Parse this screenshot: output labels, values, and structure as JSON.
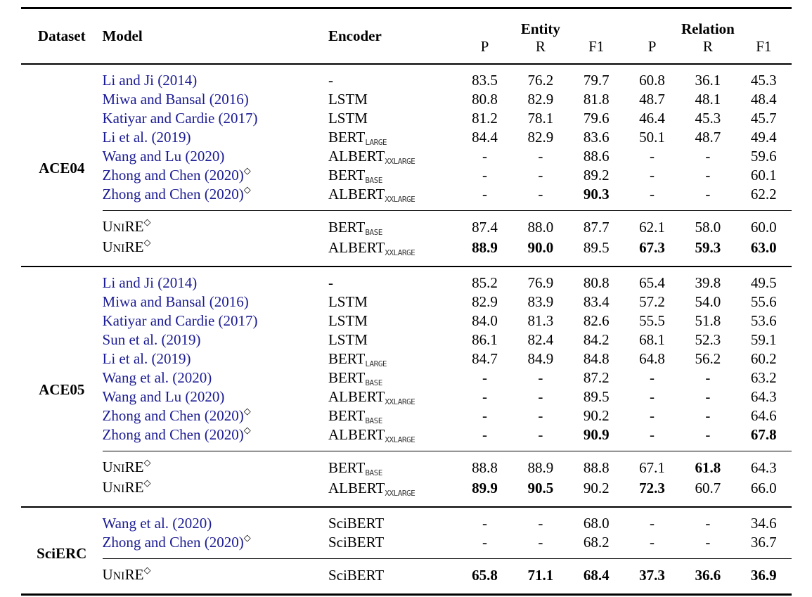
{
  "symbols": {
    "diamond": "◇"
  },
  "colors": {
    "citation": "#1b1b94",
    "text": "#000000",
    "rule": "#000000"
  },
  "header": {
    "dataset": "Dataset",
    "model": "Model",
    "encoder": "Encoder",
    "entity": "Entity",
    "relation": "Relation",
    "sub": [
      "P",
      "R",
      "F1",
      "P",
      "R",
      "F1"
    ]
  },
  "sections": [
    {
      "dataset": "ACE04",
      "rows": [
        {
          "group": "baseline",
          "model": "Li and Ji (2014)",
          "cite": true,
          "diamond": false,
          "enc": "-",
          "enc_sub": "",
          "values": [
            "83.5",
            "76.2",
            "79.7",
            "60.8",
            "36.1",
            "45.3"
          ],
          "bold": [
            false,
            false,
            false,
            false,
            false,
            false
          ]
        },
        {
          "group": "baseline",
          "model": "Miwa and Bansal (2016)",
          "cite": true,
          "diamond": false,
          "enc": "LSTM",
          "enc_sub": "",
          "values": [
            "80.8",
            "82.9",
            "81.8",
            "48.7",
            "48.1",
            "48.4"
          ],
          "bold": [
            false,
            false,
            false,
            false,
            false,
            false
          ]
        },
        {
          "group": "baseline",
          "model": "Katiyar and Cardie (2017)",
          "cite": true,
          "diamond": false,
          "enc": "LSTM",
          "enc_sub": "",
          "values": [
            "81.2",
            "78.1",
            "79.6",
            "46.4",
            "45.3",
            "45.7"
          ],
          "bold": [
            false,
            false,
            false,
            false,
            false,
            false
          ]
        },
        {
          "group": "baseline",
          "model": "Li et al. (2019)",
          "cite": true,
          "diamond": false,
          "enc": "BERT",
          "enc_sub": "LARGE",
          "values": [
            "84.4",
            "82.9",
            "83.6",
            "50.1",
            "48.7",
            "49.4"
          ],
          "bold": [
            false,
            false,
            false,
            false,
            false,
            false
          ]
        },
        {
          "group": "baseline",
          "model": "Wang and Lu (2020)",
          "cite": true,
          "diamond": false,
          "enc": "ALBERT",
          "enc_sub": "XXLARGE",
          "values": [
            "-",
            "-",
            "88.6",
            "-",
            "-",
            "59.6"
          ],
          "bold": [
            false,
            false,
            false,
            false,
            false,
            false
          ]
        },
        {
          "group": "baseline",
          "model": "Zhong and Chen (2020)",
          "cite": true,
          "diamond": true,
          "enc": "BERT",
          "enc_sub": "BASE",
          "values": [
            "-",
            "-",
            "89.2",
            "-",
            "-",
            "60.1"
          ],
          "bold": [
            false,
            false,
            false,
            false,
            false,
            false
          ]
        },
        {
          "group": "baseline",
          "model": "Zhong and Chen (2020)",
          "cite": true,
          "diamond": true,
          "enc": "ALBERT",
          "enc_sub": "XXLARGE",
          "values": [
            "-",
            "-",
            "90.3",
            "-",
            "-",
            "62.2"
          ],
          "bold": [
            false,
            false,
            true,
            false,
            false,
            false
          ]
        },
        {
          "group": "unire",
          "model_sc": [
            "U",
            "NI",
            "RE"
          ],
          "cite": false,
          "diamond": true,
          "enc": "BERT",
          "enc_sub": "BASE",
          "values": [
            "87.4",
            "88.0",
            "87.7",
            "62.1",
            "58.0",
            "60.0"
          ],
          "bold": [
            false,
            false,
            false,
            false,
            false,
            false
          ]
        },
        {
          "group": "unire",
          "model_sc": [
            "U",
            "NI",
            "RE"
          ],
          "cite": false,
          "diamond": true,
          "enc": "ALBERT",
          "enc_sub": "XXLARGE",
          "values": [
            "88.9",
            "90.0",
            "89.5",
            "67.3",
            "59.3",
            "63.0"
          ],
          "bold": [
            true,
            true,
            false,
            true,
            true,
            true
          ]
        }
      ]
    },
    {
      "dataset": "ACE05",
      "rows": [
        {
          "group": "baseline",
          "model": "Li and Ji (2014)",
          "cite": true,
          "diamond": false,
          "enc": "-",
          "enc_sub": "",
          "values": [
            "85.2",
            "76.9",
            "80.8",
            "65.4",
            "39.8",
            "49.5"
          ],
          "bold": [
            false,
            false,
            false,
            false,
            false,
            false
          ]
        },
        {
          "group": "baseline",
          "model": "Miwa and Bansal (2016)",
          "cite": true,
          "diamond": false,
          "enc": "LSTM",
          "enc_sub": "",
          "values": [
            "82.9",
            "83.9",
            "83.4",
            "57.2",
            "54.0",
            "55.6"
          ],
          "bold": [
            false,
            false,
            false,
            false,
            false,
            false
          ]
        },
        {
          "group": "baseline",
          "model": "Katiyar and Cardie (2017)",
          "cite": true,
          "diamond": false,
          "enc": "LSTM",
          "enc_sub": "",
          "values": [
            "84.0",
            "81.3",
            "82.6",
            "55.5",
            "51.8",
            "53.6"
          ],
          "bold": [
            false,
            false,
            false,
            false,
            false,
            false
          ]
        },
        {
          "group": "baseline",
          "model": "Sun et al. (2019)",
          "cite": true,
          "diamond": false,
          "enc": "LSTM",
          "enc_sub": "",
          "values": [
            "86.1",
            "82.4",
            "84.2",
            "68.1",
            "52.3",
            "59.1"
          ],
          "bold": [
            false,
            false,
            false,
            false,
            false,
            false
          ]
        },
        {
          "group": "baseline",
          "model": "Li et al. (2019)",
          "cite": true,
          "diamond": false,
          "enc": "BERT",
          "enc_sub": "LARGE",
          "values": [
            "84.7",
            "84.9",
            "84.8",
            "64.8",
            "56.2",
            "60.2"
          ],
          "bold": [
            false,
            false,
            false,
            false,
            false,
            false
          ]
        },
        {
          "group": "baseline",
          "model": "Wang et al. (2020)",
          "cite": true,
          "diamond": false,
          "enc": "BERT",
          "enc_sub": "BASE",
          "values": [
            "-",
            "-",
            "87.2",
            "-",
            "-",
            "63.2"
          ],
          "bold": [
            false,
            false,
            false,
            false,
            false,
            false
          ]
        },
        {
          "group": "baseline",
          "model": "Wang and Lu (2020)",
          "cite": true,
          "diamond": false,
          "enc": "ALBERT",
          "enc_sub": "XXLARGE",
          "values": [
            "-",
            "-",
            "89.5",
            "-",
            "-",
            "64.3"
          ],
          "bold": [
            false,
            false,
            false,
            false,
            false,
            false
          ]
        },
        {
          "group": "baseline",
          "model": "Zhong and Chen (2020)",
          "cite": true,
          "diamond": true,
          "enc": "BERT",
          "enc_sub": "BASE",
          "values": [
            "-",
            "-",
            "90.2",
            "-",
            "-",
            "64.6"
          ],
          "bold": [
            false,
            false,
            false,
            false,
            false,
            false
          ]
        },
        {
          "group": "baseline",
          "model": "Zhong and Chen (2020)",
          "cite": true,
          "diamond": true,
          "enc": "ALBERT",
          "enc_sub": "XXLARGE",
          "values": [
            "-",
            "-",
            "90.9",
            "-",
            "-",
            "67.8"
          ],
          "bold": [
            false,
            false,
            true,
            false,
            false,
            true
          ]
        },
        {
          "group": "unire",
          "model_sc": [
            "U",
            "NI",
            "RE"
          ],
          "cite": false,
          "diamond": true,
          "enc": "BERT",
          "enc_sub": "BASE",
          "values": [
            "88.8",
            "88.9",
            "88.8",
            "67.1",
            "61.8",
            "64.3"
          ],
          "bold": [
            false,
            false,
            false,
            false,
            true,
            false
          ]
        },
        {
          "group": "unire",
          "model_sc": [
            "U",
            "NI",
            "RE"
          ],
          "cite": false,
          "diamond": true,
          "enc": "ALBERT",
          "enc_sub": "XXLARGE",
          "values": [
            "89.9",
            "90.5",
            "90.2",
            "72.3",
            "60.7",
            "66.0"
          ],
          "bold": [
            true,
            true,
            false,
            true,
            false,
            false
          ]
        }
      ]
    },
    {
      "dataset": "SciERC",
      "rows": [
        {
          "group": "baseline",
          "model": "Wang et al. (2020)",
          "cite": true,
          "diamond": false,
          "enc": "SciBERT",
          "enc_sub": "",
          "values": [
            "-",
            "-",
            "68.0",
            "-",
            "-",
            "34.6"
          ],
          "bold": [
            false,
            false,
            false,
            false,
            false,
            false
          ]
        },
        {
          "group": "baseline",
          "model": "Zhong and Chen (2020)",
          "cite": true,
          "diamond": true,
          "enc": "SciBERT",
          "enc_sub": "",
          "values": [
            "-",
            "-",
            "68.2",
            "-",
            "-",
            "36.7"
          ],
          "bold": [
            false,
            false,
            false,
            false,
            false,
            false
          ]
        },
        {
          "group": "unire",
          "model_sc": [
            "U",
            "NI",
            "RE"
          ],
          "cite": false,
          "diamond": true,
          "enc": "SciBERT",
          "enc_sub": "",
          "values": [
            "65.8",
            "71.1",
            "68.4",
            "37.3",
            "36.6",
            "36.9"
          ],
          "bold": [
            true,
            true,
            true,
            true,
            true,
            true
          ]
        }
      ]
    }
  ]
}
